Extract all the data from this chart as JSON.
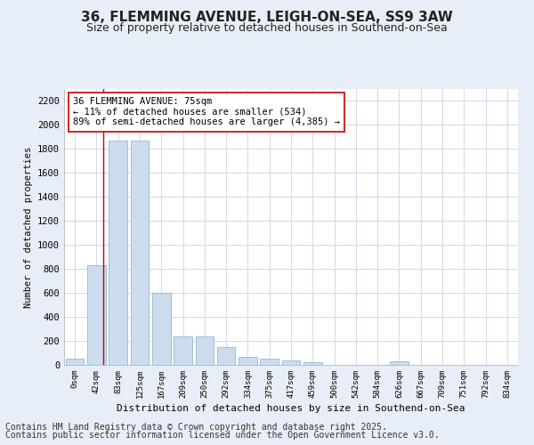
{
  "title_line1": "36, FLEMMING AVENUE, LEIGH-ON-SEA, SS9 3AW",
  "title_line2": "Size of property relative to detached houses in Southend-on-Sea",
  "xlabel": "Distribution of detached houses by size in Southend-on-Sea",
  "ylabel": "Number of detached properties",
  "bin_labels": [
    "0sqm",
    "42sqm",
    "83sqm",
    "125sqm",
    "167sqm",
    "209sqm",
    "250sqm",
    "292sqm",
    "334sqm",
    "375sqm",
    "417sqm",
    "459sqm",
    "500sqm",
    "542sqm",
    "584sqm",
    "626sqm",
    "667sqm",
    "709sqm",
    "751sqm",
    "792sqm",
    "834sqm"
  ],
  "bar_heights": [
    50,
    830,
    1870,
    1870,
    600,
    240,
    240,
    150,
    70,
    50,
    40,
    20,
    0,
    0,
    0,
    30,
    0,
    0,
    0,
    0,
    0
  ],
  "bar_color": "#ccdcef",
  "bar_edge_color": "#7aaecc",
  "vline_color": "#cc0000",
  "annotation_text": "36 FLEMMING AVENUE: 75sqm\n← 11% of detached houses are smaller (534)\n89% of semi-detached houses are larger (4,385) →",
  "annotation_box_color": "#ffffff",
  "annotation_box_edge": "#cc0000",
  "ylim": [
    0,
    2300
  ],
  "yticks": [
    0,
    200,
    400,
    600,
    800,
    1000,
    1200,
    1400,
    1600,
    1800,
    2000,
    2200
  ],
  "grid_color": "#c8d4e8",
  "background_color": "#e8eef8",
  "plot_bg_color": "#ffffff",
  "footer_line1": "Contains HM Land Registry data © Crown copyright and database right 2025.",
  "footer_line2": "Contains public sector information licensed under the Open Government Licence v3.0.",
  "title_fontsize": 11,
  "subtitle_fontsize": 9,
  "footer_fontsize": 7
}
